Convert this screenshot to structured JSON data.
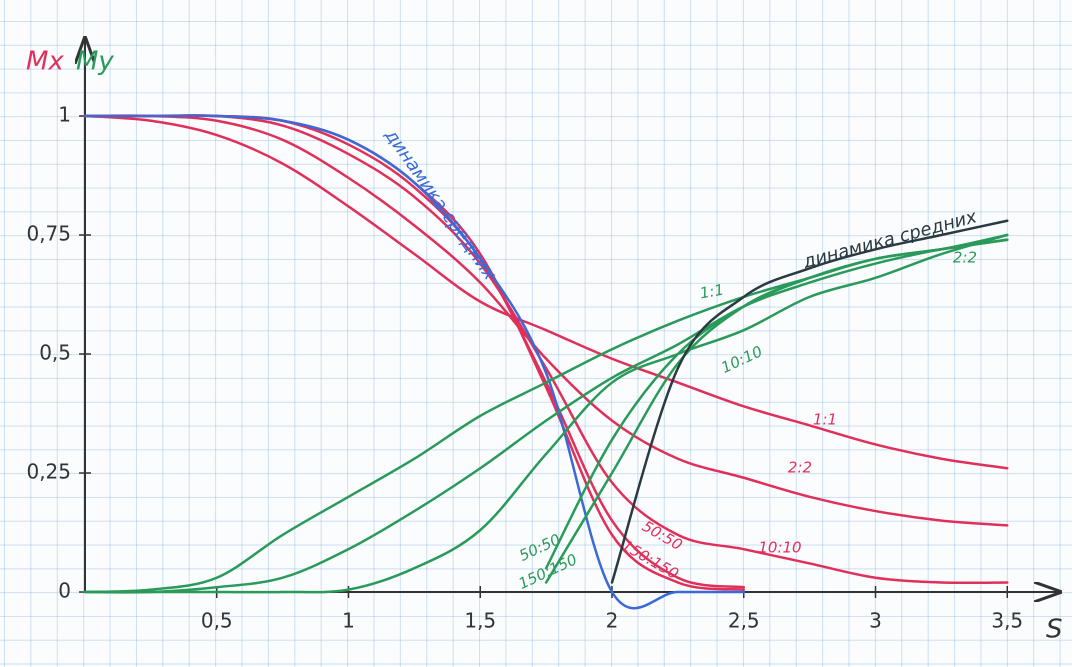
{
  "chart_data": {
    "type": "line",
    "y_labels": [
      {
        "text": "Mx",
        "color": "#e0305a"
      },
      {
        "text": "My",
        "color": "#2a9a5a"
      }
    ],
    "xlabel": "S",
    "x": [
      0,
      0.25,
      0.5,
      0.75,
      1,
      1.25,
      1.5,
      1.75,
      2,
      2.25,
      2.5,
      2.75,
      3,
      3.25,
      3.5
    ],
    "xlim": [
      0,
      3.7
    ],
    "ylim": [
      0,
      1.1
    ],
    "xticks": [
      {
        "value": 0.5,
        "label": "0,5"
      },
      1,
      {
        "value": 1.5,
        "label": "1,5"
      },
      2,
      {
        "value": 2.5,
        "label": "2,5"
      },
      3,
      {
        "value": 3.5,
        "label": "3,5"
      }
    ],
    "yticks": [
      0,
      {
        "value": 0.25,
        "label": "0,25"
      },
      {
        "value": 0.5,
        "label": "0,5"
      },
      {
        "value": 0.75,
        "label": "0,75"
      },
      1
    ],
    "series": [
      {
        "name": "1:1",
        "color": "#e0305a",
        "values": [
          1,
          0.99,
          0.96,
          0.9,
          0.81,
          0.71,
          0.61,
          0.55,
          0.49,
          0.44,
          0.39,
          0.35,
          0.31,
          0.28,
          0.26
        ]
      },
      {
        "name": "2:2",
        "color": "#e0305a",
        "values": [
          1,
          1,
          0.99,
          0.95,
          0.87,
          0.77,
          0.65,
          0.49,
          0.36,
          0.28,
          0.24,
          0.2,
          0.17,
          0.15,
          0.14
        ]
      },
      {
        "name": "10:10",
        "color": "#e0305a",
        "values": [
          1,
          1,
          1,
          0.98,
          0.92,
          0.83,
          0.69,
          0.47,
          0.23,
          0.12,
          0.09,
          0.06,
          0.03,
          0.02,
          0.02
        ]
      },
      {
        "name": "50:50",
        "color": "#e0305a",
        "values": [
          1,
          1,
          1,
          0.99,
          0.94,
          0.85,
          0.7,
          0.44,
          0.15,
          0.03,
          0.01,
          null,
          null,
          null,
          null
        ]
      },
      {
        "name": "150:150",
        "color": "#e0305a",
        "values": [
          1,
          1,
          1,
          0.99,
          0.95,
          0.86,
          0.71,
          0.43,
          0.12,
          0.02,
          0.005,
          null,
          null,
          null,
          null
        ]
      },
      {
        "name": "динамика средних",
        "color": "#3a6ad8",
        "values": [
          1,
          1,
          1,
          0.99,
          0.95,
          0.86,
          0.7,
          0.46,
          0,
          0,
          0,
          null,
          null,
          null,
          null
        ]
      },
      {
        "name": "1:1",
        "color": "#2a9a5a",
        "values": [
          0,
          0.005,
          0.03,
          0.12,
          0.2,
          0.28,
          0.37,
          0.44,
          0.51,
          0.57,
          0.62,
          0.66,
          0.7,
          0.72,
          0.75
        ]
      },
      {
        "name": "2:2",
        "color": "#2a9a5a",
        "values": [
          0,
          0,
          0.01,
          0.03,
          0.09,
          0.17,
          0.26,
          0.36,
          0.45,
          0.52,
          0.6,
          0.65,
          0.69,
          0.72,
          0.74
        ]
      },
      {
        "name": "10:10",
        "color": "#2a9a5a",
        "values": [
          0,
          0,
          0,
          0,
          0.005,
          0.05,
          0.13,
          0.29,
          0.44,
          0.5,
          0.55,
          0.62,
          0.66,
          0.71,
          0.75
        ]
      },
      {
        "name": "50:50",
        "color": "#2a9a5a",
        "values": [
          null,
          null,
          null,
          null,
          null,
          null,
          null,
          0.05,
          0.32,
          0.5,
          0.6,
          0.66,
          0.7,
          0.72,
          0.74
        ]
      },
      {
        "name": "150:150",
        "color": "#2a9a5a",
        "values": [
          null,
          null,
          null,
          null,
          null,
          null,
          null,
          0.02,
          0.25,
          0.48,
          0.6,
          0.66,
          0.7,
          0.72,
          0.74
        ]
      },
      {
        "name": "динамика средних",
        "color": "#2a3a40",
        "values": [
          null,
          null,
          null,
          null,
          null,
          null,
          null,
          null,
          0.02,
          0.47,
          0.62,
          0.68,
          0.72,
          0.75,
          0.78
        ]
      }
    ]
  }
}
